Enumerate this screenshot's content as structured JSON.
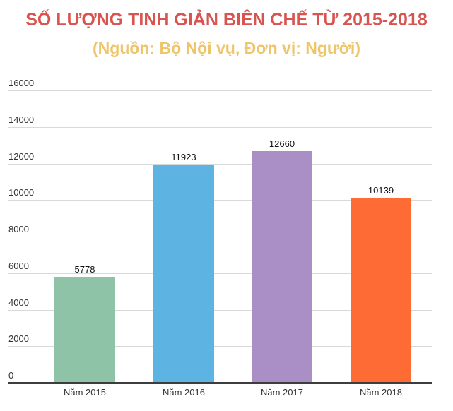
{
  "header": {
    "title": "SỐ LƯỢNG TINH GIẢN BIÊN CHẾ TỪ 2015-2018",
    "subtitle": "(Nguồn: Bộ Nội vụ, Đơn vị: Người)"
  },
  "colors": {
    "title": "#d9534f",
    "subtitle": "#efc56b",
    "bars": [
      "#8ec3a7",
      "#5db4e3",
      "#a98fc6",
      "#ff6b35"
    ]
  },
  "chart_data": {
    "type": "bar",
    "title": "SỐ LƯỢNG TINH GIẢN BIÊN CHẾ TỪ 2015-2018",
    "subtitle": "(Nguồn: Bộ Nội vụ, Đơn vị: Người)",
    "categories": [
      "Năm 2015",
      "Năm 2016",
      "Năm 2017",
      "Năm 2018"
    ],
    "values": [
      5778,
      11923,
      12660,
      10139
    ],
    "value_labels": [
      "5778",
      "11923",
      "12660",
      "10139"
    ],
    "xlabel": "",
    "ylabel": "",
    "ylim": [
      0,
      16000
    ],
    "yticks": [
      "0",
      "2000",
      "4000",
      "6000",
      "8000",
      "10000",
      "12000",
      "14000",
      "16000"
    ],
    "grid": true,
    "legend": null
  }
}
